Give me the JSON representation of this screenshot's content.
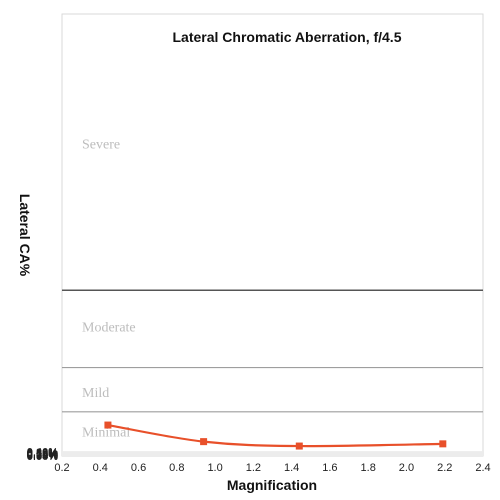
{
  "chart_data": {
    "type": "line",
    "title": "Lateral Chromatic Aberration, f/4.5",
    "xlabel": "Magnification",
    "ylabel": "Lateral CA%",
    "xlim": [
      0.2,
      2.4
    ],
    "ylim": [
      0.0,
      0.4
    ],
    "x_ticks": [
      "0.2",
      "0.4",
      "0.6",
      "0.8",
      "1.0",
      "1.2",
      "1.4",
      "1.6",
      "1.8",
      "2.0",
      "2.2",
      "2.4"
    ],
    "y_ticks": [
      "0.00%",
      "0.04%",
      "0.08%",
      "0.12%",
      "0.16%",
      "0.20%",
      "0.24%",
      "0.28%",
      "0.32%",
      "0.36%",
      "0.40%"
    ],
    "grid": "horizontal",
    "series": [
      {
        "color": "#e8502a",
        "x": [
          0.44,
          0.94,
          1.44,
          2.19
        ],
        "y": [
          0.028,
          0.013,
          0.009,
          0.011
        ]
      }
    ],
    "zones": [
      {
        "label": "Severe",
        "threshold": 0.15
      },
      {
        "label": "Moderate",
        "threshold": 0.08
      },
      {
        "label": "Mild",
        "threshold": 0.04
      },
      {
        "label": "Minimal",
        "threshold": 0.0
      }
    ],
    "zone_label_values": {
      "Severe": 0.283,
      "Moderate": 0.117,
      "Mild": 0.058,
      "Minimal": 0.022
    }
  }
}
